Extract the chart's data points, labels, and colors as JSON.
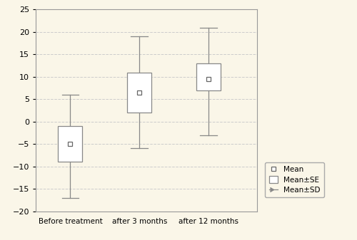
{
  "categories": [
    "Before treatment",
    "after 3 months",
    "after 12 months"
  ],
  "means": [
    -5,
    6.5,
    9.5
  ],
  "se_lower": [
    -9,
    2,
    7
  ],
  "se_upper": [
    -1,
    11,
    13
  ],
  "sd_lower": [
    -17,
    -6,
    -3
  ],
  "sd_upper": [
    6,
    19,
    21
  ],
  "ylim": [
    -20,
    25
  ],
  "yticks": [
    -20,
    -15,
    -10,
    -5,
    0,
    5,
    10,
    15,
    20,
    25
  ],
  "background_color": "#faf6e8",
  "box_color": "#ffffff",
  "box_edge_color": "#888888",
  "whisker_color": "#888888",
  "mean_marker_color": "#ffffff",
  "mean_marker_edge": "#666666",
  "grid_color": "#cccccc",
  "legend_labels": [
    "Mean",
    "Mean±SE",
    "Mean±SD"
  ],
  "bar_width": 0.35,
  "x_positions": [
    1,
    2,
    3
  ]
}
